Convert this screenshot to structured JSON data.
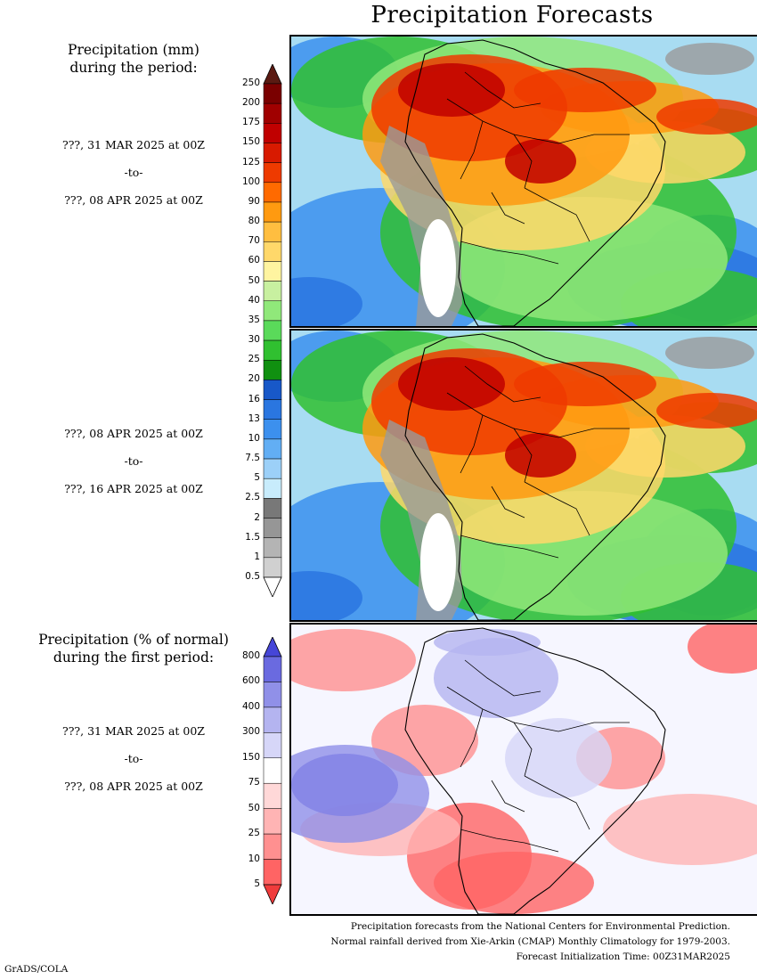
{
  "title": "Precipitation Forecasts",
  "section_mm": {
    "heading_line1": "Precipitation (mm)",
    "heading_line2": "during the period:",
    "period1": {
      "from": "???, 31 MAR 2025 at 00Z",
      "sep": "-to-",
      "to": "???, 08 APR 2025 at 00Z"
    },
    "period2": {
      "from": "???, 08 APR 2025 at 00Z",
      "sep": "-to-",
      "to": "???, 16 APR 2025 at 00Z"
    }
  },
  "section_pct": {
    "heading_line1": "Precipitation (% of normal)",
    "heading_line2": "during the first period:",
    "period": {
      "from": "???, 31 MAR 2025 at 00Z",
      "sep": "-to-",
      "to": "???, 08 APR 2025 at 00Z"
    }
  },
  "colorbar_mm": {
    "labels": [
      "250",
      "200",
      "175",
      "150",
      "125",
      "100",
      "90",
      "80",
      "70",
      "60",
      "50",
      "40",
      "35",
      "30",
      "25",
      "20",
      "16",
      "13",
      "10",
      "7.5",
      "5",
      "2.5",
      "2",
      "1.5",
      "1",
      "0.5"
    ],
    "colors": [
      "#5a1a12",
      "#7a0000",
      "#a00000",
      "#c00000",
      "#d81a00",
      "#ee3a00",
      "#ff6a00",
      "#ff9a10",
      "#ffbe40",
      "#ffd86a",
      "#fff4a0",
      "#c8f0a0",
      "#90e87a",
      "#5ada5a",
      "#30c030",
      "#109010",
      "#1858c8",
      "#2a76e0",
      "#3c90ee",
      "#62aef4",
      "#9cd0f8",
      "#c8ecfc",
      "#787878",
      "#969696",
      "#b4b4b4",
      "#d0d0d0",
      "#ffffff"
    ]
  },
  "colorbar_pct": {
    "labels": [
      "800",
      "600",
      "400",
      "300",
      "150",
      "75",
      "50",
      "25",
      "10",
      "5"
    ],
    "colors": [
      "#4646d8",
      "#6a6ae0",
      "#9090e8",
      "#b4b4f0",
      "#d6d6f8",
      "#ffffff",
      "#ffd8d8",
      "#ffb4b4",
      "#ff9090",
      "#ff6464",
      "#f03c3c"
    ]
  },
  "credits": {
    "line1": "Precipitation forecasts from the National Centers for Environmental Prediction.",
    "line2": "Normal rainfall derived from Xie-Arkin (CMAP) Monthly Climatology for 1979-2003.",
    "line3": "Forecast Initialization Time: 00Z31MAR2025"
  },
  "footer_tag": "GrADS/COLA"
}
